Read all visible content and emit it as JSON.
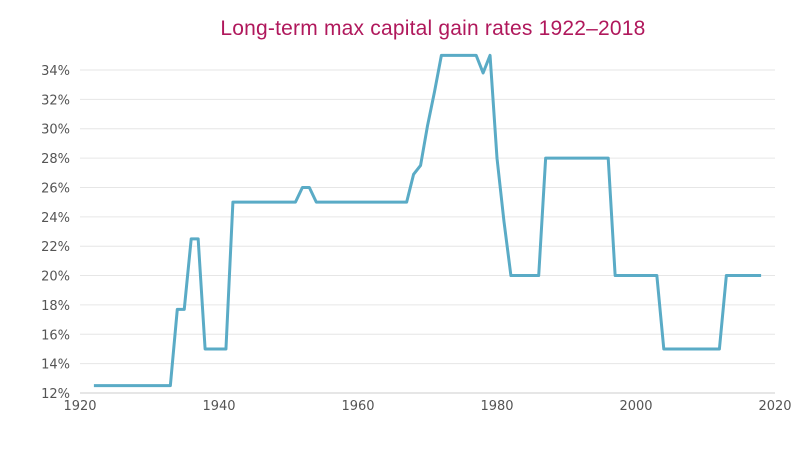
{
  "colors": {
    "title": "#b0185c",
    "line": "#5aabc6",
    "grid": "#e6e6e6",
    "axis": "#cccccc",
    "tick_label": "#555555"
  },
  "chart_data": {
    "type": "line",
    "title": "Long-term max capital gain rates 1922–2018",
    "xlabel": "",
    "ylabel": "",
    "xlim": [
      1920,
      2020
    ],
    "ylim": [
      12,
      35.5
    ],
    "grid": true,
    "legend": "none",
    "x_ticks": [
      1920,
      1940,
      1960,
      1980,
      2000,
      2020
    ],
    "x_tick_labels": [
      "1920",
      "1940",
      "1960",
      "1980",
      "2000",
      "2020"
    ],
    "y_ticks": [
      12,
      14,
      16,
      18,
      20,
      22,
      24,
      26,
      28,
      30,
      32,
      34
    ],
    "y_tick_labels": [
      "12%",
      "14%",
      "16%",
      "18%",
      "20%",
      "22%",
      "24%",
      "26%",
      "28%",
      "30%",
      "32%",
      "34%"
    ],
    "series": [
      {
        "x": [
          1922,
          1933,
          1934,
          1935,
          1936,
          1937,
          1938,
          1941,
          1942,
          1951,
          1952,
          1953,
          1954,
          1967,
          1968,
          1969,
          1970,
          1971,
          1972,
          1977,
          1978,
          1979,
          1980,
          1981,
          1982,
          1986,
          1987,
          1996,
          1997,
          2003,
          2004,
          2012,
          2013,
          2018
        ],
        "y": [
          12.5,
          12.5,
          17.7,
          17.7,
          22.5,
          22.5,
          15,
          15,
          25,
          25,
          26,
          26,
          25,
          25,
          26.9,
          27.5,
          30.2,
          32.5,
          35,
          35,
          33.8,
          35,
          28,
          23.7,
          20,
          20,
          28,
          28,
          20,
          20,
          15,
          15,
          20,
          20
        ]
      }
    ]
  }
}
